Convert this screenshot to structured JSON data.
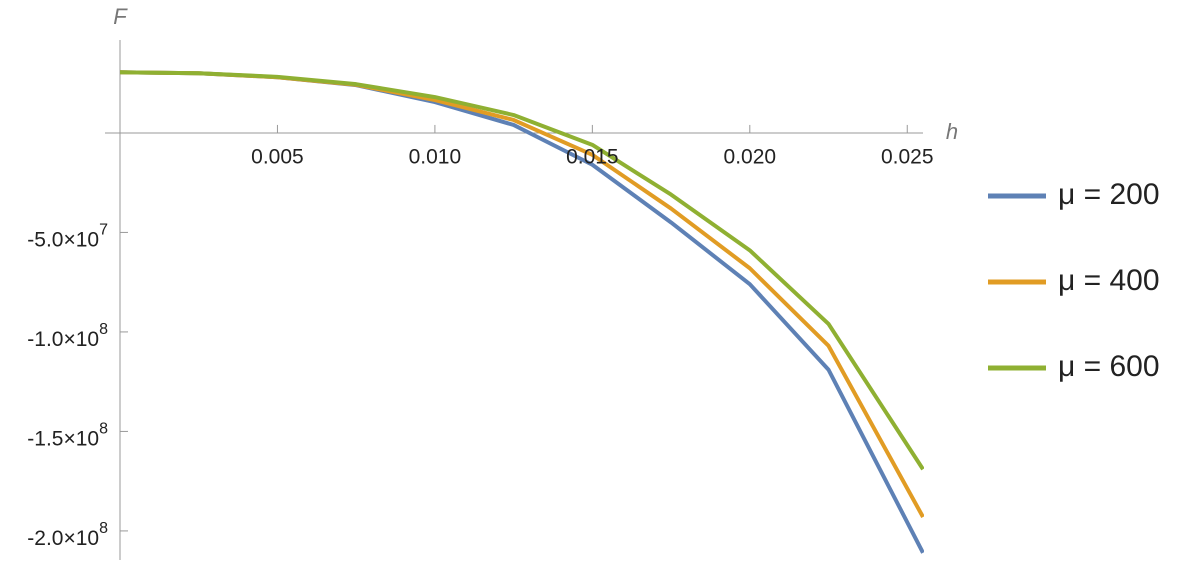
{
  "chart_data": {
    "type": "line",
    "x_label": "h",
    "y_label": "F",
    "x": [
      0,
      0.0025,
      0.005,
      0.0075,
      0.01,
      0.0125,
      0.015,
      0.0175,
      0.02,
      0.0225,
      0.0255
    ],
    "series": [
      {
        "name": "μ = 200",
        "color": "#5e81b5",
        "values": [
          30500000,
          30000000,
          28000000,
          24000000,
          15500000,
          4000000,
          -16000000,
          -45000000,
          -76000000,
          -119000000,
          -211000000
        ]
      },
      {
        "name": "μ = 400",
        "color": "#e19c24",
        "values": [
          30500000,
          30000000,
          28000000,
          24200000,
          16500000,
          6500000,
          -11000000,
          -38000000,
          -68000000,
          -107000000,
          -193000000
        ]
      },
      {
        "name": "μ = 600",
        "color": "#8fb032",
        "values": [
          30500000,
          30000000,
          28200000,
          24500000,
          18000000,
          9000000,
          -6000000,
          -31000000,
          -59000000,
          -96000000,
          -169000000
        ]
      }
    ],
    "xlim": [
      0,
      0.0255
    ],
    "ylim": [
      -212600000,
      46700000
    ],
    "xticks": [
      0.005,
      {
        "value": 0.01,
        "label": "0.010"
      },
      0.015,
      {
        "value": 0.02,
        "label": "0.020"
      },
      0.025
    ],
    "yticks": [
      {
        "value": -50000000,
        "label": "-5.0×10",
        "exponent": "7"
      },
      {
        "value": -100000000,
        "label": "-1.0×10",
        "exponent": "8"
      },
      {
        "value": -150000000,
        "label": "-1.5×10",
        "exponent": "8"
      },
      {
        "value": -200000000,
        "label": "-2.0×10",
        "exponent": "8"
      }
    ]
  }
}
